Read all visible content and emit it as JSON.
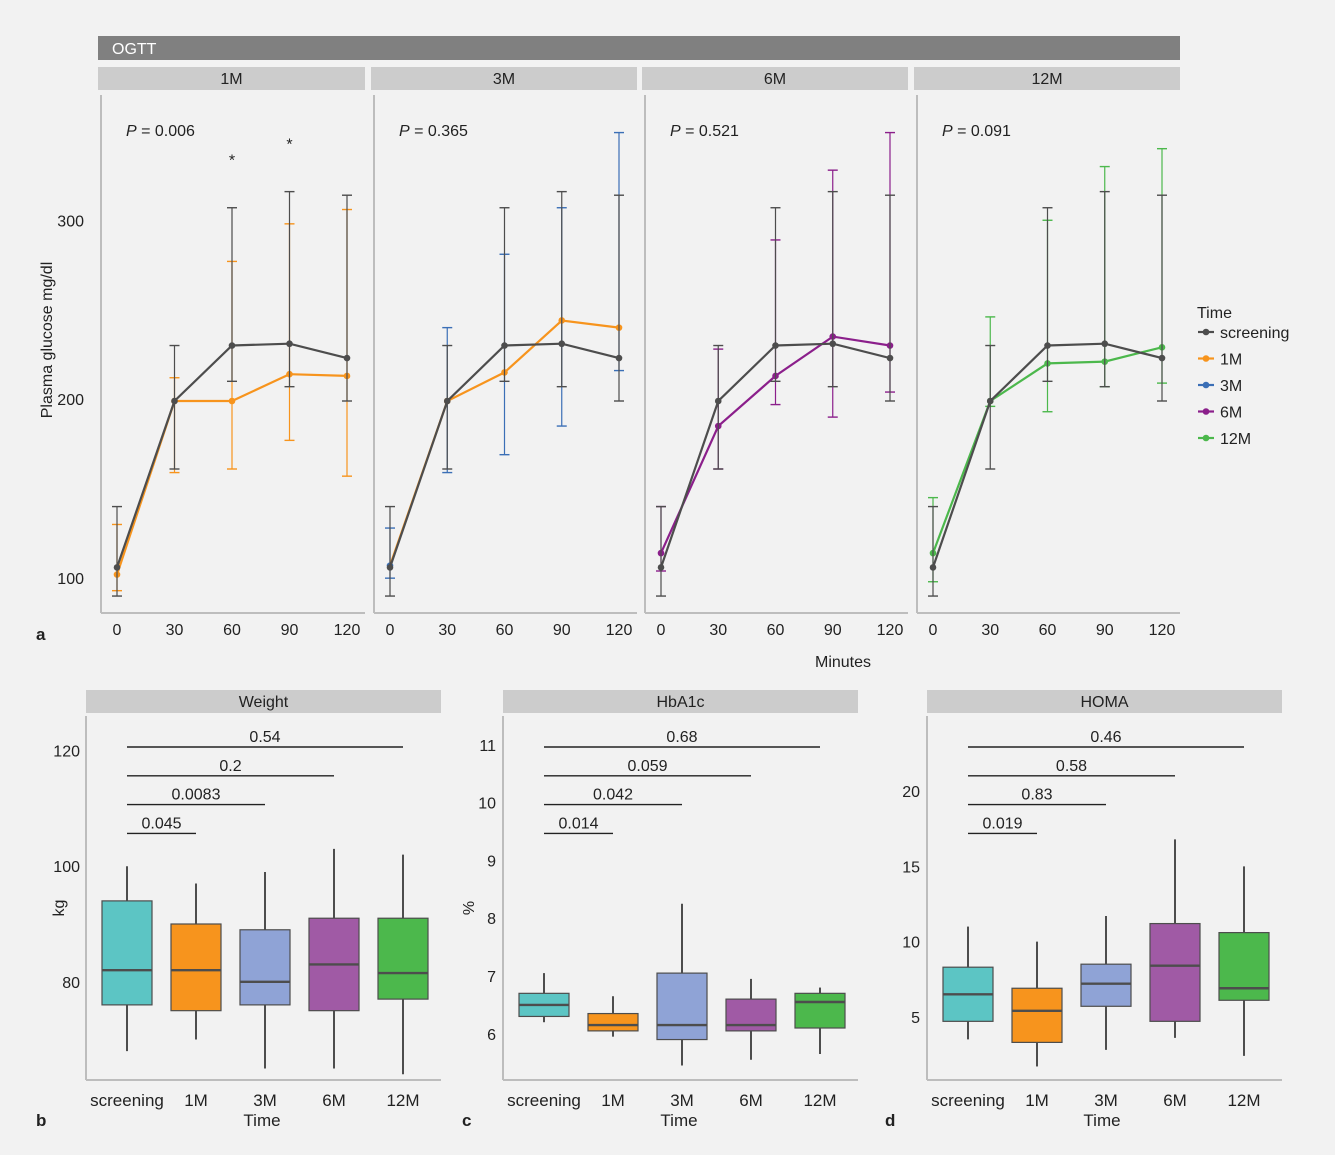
{
  "colors": {
    "screening": "#4d4d4d",
    "1M": "#f7941d",
    "3M": "#3b6fb6",
    "6M": "#8b1f8b",
    "12M": "#4cb84c",
    "box_screening": "#5cc5c4",
    "box_1M": "#f7941d",
    "box_3M": "#8fa3d6",
    "box_6M": "#a05aa5",
    "box_12M": "#4cb84c",
    "strip_dark": "#808080",
    "strip_light": "#cccccc"
  },
  "panel_a": {
    "letter": "a",
    "header": "OGTT",
    "facets": [
      "1M",
      "3M",
      "6M",
      "12M"
    ],
    "ylabel": "Plasma glucose mg/dl",
    "xlabel": "Minutes",
    "yticks": [
      100,
      200,
      300
    ],
    "xticks": [
      0,
      30,
      60,
      90,
      120
    ],
    "p_prefix": "P",
    "p_values": [
      "= 0.006",
      "= 0.365",
      "= 0.521",
      "= 0.091"
    ],
    "legend_title": "Time",
    "legend_items": [
      "screening",
      "1M",
      "3M",
      "6M",
      "12M"
    ]
  },
  "panel_b": {
    "letter": "b",
    "title": "Weight",
    "ylabel": "kg",
    "xlabel": "Time"
  },
  "panel_c": {
    "letter": "c",
    "title": "HbA1c",
    "ylabel": "%",
    "xlabel": "Time"
  },
  "panel_d": {
    "letter": "d",
    "title": "HOMA",
    "ylabel": "",
    "xlabel": "Time"
  },
  "chart_data": [
    {
      "type": "line",
      "title": "OGTT",
      "facet": "1M",
      "xlabel": "Minutes",
      "ylabel": "Plasma glucose mg/dl",
      "x": [
        0,
        30,
        60,
        90,
        120
      ],
      "xlim": [
        -3,
        123
      ],
      "ylim": [
        85,
        370
      ],
      "p_value": "0.006",
      "significance": [
        {
          "x": 60,
          "label": "*"
        },
        {
          "x": 90,
          "label": "*"
        }
      ],
      "series": [
        {
          "name": "screening",
          "values": [
            106,
            199,
            230,
            231,
            223
          ],
          "err_low": [
            90,
            161,
            210,
            207,
            199
          ],
          "err_high": [
            140,
            230,
            307,
            316,
            314
          ]
        },
        {
          "name": "1M",
          "values": [
            102,
            199,
            199,
            214,
            213
          ],
          "err_low": [
            93,
            159,
            161,
            177,
            157
          ],
          "err_high": [
            130,
            212,
            277,
            298,
            306
          ]
        }
      ]
    },
    {
      "type": "line",
      "title": "OGTT",
      "facet": "3M",
      "xlabel": "Minutes",
      "ylabel": "Plasma glucose mg/dl",
      "x": [
        0,
        30,
        60,
        90,
        120
      ],
      "xlim": [
        -3,
        123
      ],
      "ylim": [
        85,
        370
      ],
      "p_value": "0.365",
      "series": [
        {
          "name": "screening",
          "values": [
            106,
            199,
            230,
            231,
            223
          ],
          "err_low": [
            90,
            161,
            210,
            207,
            199
          ],
          "err_high": [
            140,
            230,
            307,
            316,
            314
          ]
        },
        {
          "name": "3M",
          "values": [
            107,
            199,
            215,
            244,
            240
          ],
          "err_low": [
            100,
            159,
            169,
            185,
            216
          ],
          "err_high": [
            128,
            240,
            281,
            307,
            349
          ]
        }
      ]
    },
    {
      "type": "line",
      "title": "OGTT",
      "facet": "6M",
      "xlabel": "Minutes",
      "ylabel": "Plasma glucose mg/dl",
      "x": [
        0,
        30,
        60,
        90,
        120
      ],
      "xlim": [
        -3,
        123
      ],
      "ylim": [
        85,
        370
      ],
      "p_value": "0.521",
      "series": [
        {
          "name": "screening",
          "values": [
            106,
            199,
            230,
            231,
            223
          ],
          "err_low": [
            90,
            161,
            210,
            207,
            199
          ],
          "err_high": [
            140,
            230,
            307,
            316,
            314
          ]
        },
        {
          "name": "6M",
          "values": [
            114,
            185,
            213,
            235,
            230
          ],
          "err_low": [
            104,
            161,
            197,
            190,
            204
          ],
          "err_high": [
            140,
            228,
            289,
            328,
            349
          ]
        }
      ]
    },
    {
      "type": "line",
      "title": "OGTT",
      "facet": "12M",
      "xlabel": "Minutes",
      "ylabel": "Plasma glucose mg/dl",
      "x": [
        0,
        30,
        60,
        90,
        120
      ],
      "xlim": [
        -3,
        123
      ],
      "ylim": [
        85,
        370
      ],
      "p_value": "0.091",
      "series": [
        {
          "name": "screening",
          "values": [
            106,
            199,
            230,
            231,
            223
          ],
          "err_low": [
            90,
            161,
            210,
            207,
            199
          ],
          "err_high": [
            140,
            230,
            307,
            316,
            314
          ]
        },
        {
          "name": "12M",
          "values": [
            114,
            199,
            220,
            221,
            229
          ],
          "err_low": [
            98,
            196,
            193,
            207,
            209
          ],
          "err_high": [
            145,
            246,
            300,
            330,
            340
          ]
        }
      ]
    },
    {
      "type": "box",
      "title": "Weight",
      "xlabel": "Time",
      "ylabel": "kg",
      "categories": [
        "screening",
        "1M",
        "3M",
        "6M",
        "12M"
      ],
      "yticks": [
        80,
        100,
        120
      ],
      "ylim": [
        63,
        126
      ],
      "boxes": [
        {
          "min": 68,
          "q1": 76,
          "median": 82,
          "q3": 94,
          "max": 100
        },
        {
          "min": 70,
          "q1": 75,
          "median": 82,
          "q3": 90,
          "max": 97
        },
        {
          "min": 65,
          "q1": 76,
          "median": 80,
          "q3": 89,
          "max": 99
        },
        {
          "min": 65,
          "q1": 75,
          "median": 83,
          "q3": 91,
          "max": 103
        },
        {
          "min": 64,
          "q1": 77,
          "median": 81.5,
          "q3": 91,
          "max": 102
        }
      ],
      "comparisons": [
        {
          "from": "screening",
          "to": "1M",
          "p": "0.045"
        },
        {
          "from": "screening",
          "to": "3M",
          "p": "0.0083"
        },
        {
          "from": "screening",
          "to": "6M",
          "p": "0.2"
        },
        {
          "from": "screening",
          "to": "12M",
          "p": "0.54"
        }
      ]
    },
    {
      "type": "box",
      "title": "HbA1c",
      "xlabel": "Time",
      "ylabel": "%",
      "categories": [
        "screening",
        "1M",
        "3M",
        "6M",
        "12M"
      ],
      "yticks": [
        6,
        7,
        8,
        9,
        10,
        11
      ],
      "ylim": [
        5.2,
        11.5
      ],
      "boxes": [
        {
          "min": 6.2,
          "q1": 6.3,
          "median": 6.5,
          "q3": 6.7,
          "max": 7.05
        },
        {
          "min": 5.95,
          "q1": 6.05,
          "median": 6.15,
          "q3": 6.35,
          "max": 6.65
        },
        {
          "min": 5.45,
          "q1": 5.9,
          "median": 6.15,
          "q3": 7.05,
          "max": 8.25
        },
        {
          "min": 5.55,
          "q1": 6.05,
          "median": 6.15,
          "q3": 6.6,
          "max": 6.95
        },
        {
          "min": 5.65,
          "q1": 6.1,
          "median": 6.55,
          "q3": 6.7,
          "max": 6.8
        }
      ],
      "comparisons": [
        {
          "from": "screening",
          "to": "1M",
          "p": "0.014"
        },
        {
          "from": "screening",
          "to": "3M",
          "p": "0.042"
        },
        {
          "from": "screening",
          "to": "6M",
          "p": "0.059"
        },
        {
          "from": "screening",
          "to": "12M",
          "p": "0.68"
        }
      ]
    },
    {
      "type": "box",
      "title": "HOMA",
      "xlabel": "Time",
      "ylabel": "",
      "categories": [
        "screening",
        "1M",
        "3M",
        "6M",
        "12M"
      ],
      "yticks": [
        5,
        10,
        15,
        20
      ],
      "ylim": [
        0.8,
        25
      ],
      "boxes": [
        {
          "min": 3.5,
          "q1": 4.7,
          "median": 6.5,
          "q3": 8.3,
          "max": 11
        },
        {
          "min": 1.7,
          "q1": 3.3,
          "median": 5.4,
          "q3": 6.9,
          "max": 10
        },
        {
          "min": 2.8,
          "q1": 5.7,
          "median": 7.2,
          "q3": 8.5,
          "max": 11.7
        },
        {
          "min": 3.6,
          "q1": 4.7,
          "median": 8.4,
          "q3": 11.2,
          "max": 16.8
        },
        {
          "min": 2.4,
          "q1": 6.1,
          "median": 6.9,
          "q3": 10.6,
          "max": 15
        }
      ],
      "comparisons": [
        {
          "from": "screening",
          "to": "1M",
          "p": "0.019"
        },
        {
          "from": "screening",
          "to": "3M",
          "p": "0.83"
        },
        {
          "from": "screening",
          "to": "6M",
          "p": "0.58"
        },
        {
          "from": "screening",
          "to": "12M",
          "p": "0.46"
        }
      ]
    }
  ]
}
